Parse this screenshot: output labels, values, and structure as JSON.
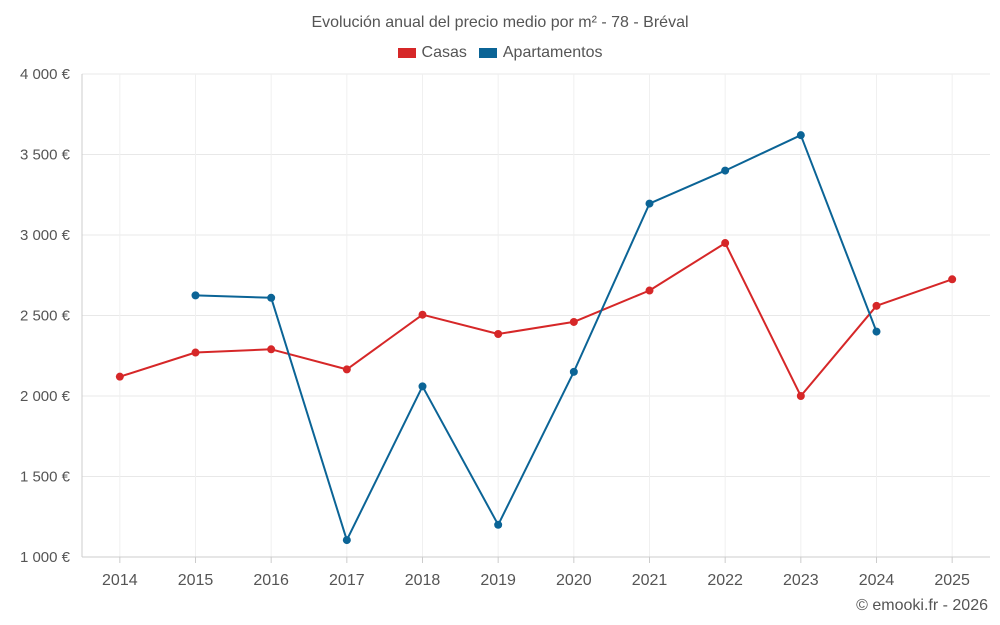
{
  "chart_data": {
    "type": "line",
    "title": "Evolución anual del precio medio por m² - 78 - Bréval",
    "categories": [
      "2014",
      "2015",
      "2016",
      "2017",
      "2018",
      "2019",
      "2020",
      "2021",
      "2022",
      "2023",
      "2024",
      "2025"
    ],
    "series": [
      {
        "name": "Casas",
        "color": "#d62728",
        "values": [
          2120,
          2270,
          2290,
          2165,
          2505,
          2385,
          2460,
          2655,
          2950,
          2000,
          2560,
          2725
        ]
      },
      {
        "name": "Apartamentos",
        "color": "#0b6496",
        "values": [
          null,
          2625,
          2610,
          1105,
          2060,
          1200,
          2150,
          3195,
          3400,
          3620,
          2400,
          null
        ]
      }
    ],
    "ylim": [
      1000,
      4000
    ],
    "yticks": [
      1000,
      1500,
      2000,
      2500,
      3000,
      3500,
      4000
    ],
    "ytick_labels": [
      "1 000 €",
      "1 500 €",
      "2 000 €",
      "2 500 €",
      "3 000 €",
      "3 500 €",
      "4 000 €"
    ],
    "xlabel": "",
    "ylabel": "",
    "grid": true,
    "legend_position": "top-center"
  },
  "credit": "© emooki.fr - 2026"
}
